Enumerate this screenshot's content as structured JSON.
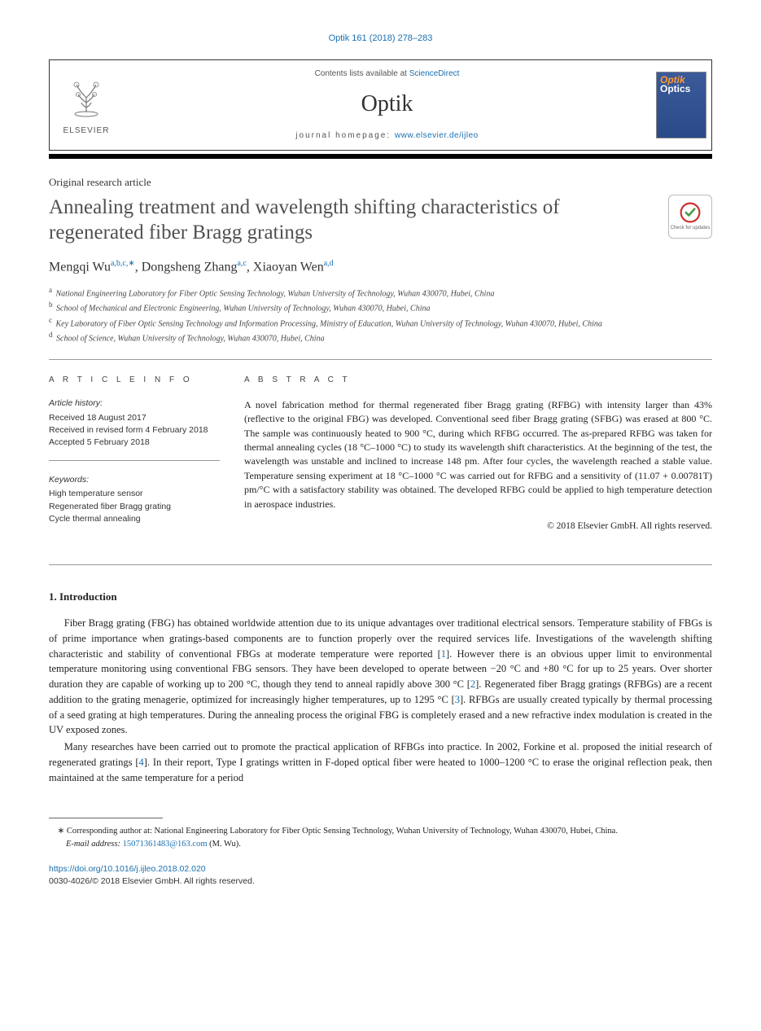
{
  "citation": "Optik 161 (2018) 278–283",
  "header": {
    "contents_prefix": "Contents lists available at ",
    "contents_link": "ScienceDirect",
    "journal": "Optik",
    "homepage_prefix": "journal homepage: ",
    "homepage_url": "www.elsevier.de/ijleo",
    "publisher": "ELSEVIER",
    "cover_title1": "Optik",
    "cover_title2": "Optics"
  },
  "article_type": "Original research article",
  "title": "Annealing treatment and wavelength shifting characteristics of regenerated fiber Bragg gratings",
  "crossmark_label": "Check for updates",
  "authors": [
    {
      "name": "Mengqi Wu",
      "affs": "a,b,c,",
      "star": "∗"
    },
    {
      "name": "Dongsheng Zhang",
      "affs": "a,c",
      "star": ""
    },
    {
      "name": "Xiaoyan Wen",
      "affs": "a,d",
      "star": ""
    }
  ],
  "affiliations": [
    {
      "key": "a",
      "text": "National Engineering Laboratory for Fiber Optic Sensing Technology, Wuhan University of Technology, Wuhan 430070, Hubei, China"
    },
    {
      "key": "b",
      "text": "School of Mechanical and Electronic Engineering, Wuhan University of Technology, Wuhan 430070, Hubei, China"
    },
    {
      "key": "c",
      "text": "Key Laboratory of Fiber Optic Sensing Technology and Information Processing, Ministry of Education, Wuhan University of Technology, Wuhan 430070, Hubei, China"
    },
    {
      "key": "d",
      "text": "School of Science, Wuhan University of Technology, Wuhan 430070, Hubei, China"
    }
  ],
  "info": {
    "label": "a r t i c l e   i n f o",
    "history_label": "Article history:",
    "history": [
      "Received 18 August 2017",
      "Received in revised form 4 February 2018",
      "Accepted 5 February 2018"
    ],
    "keywords_label": "Keywords:",
    "keywords": [
      "High temperature sensor",
      "Regenerated fiber Bragg grating",
      "Cycle thermal annealing"
    ]
  },
  "abstract": {
    "label": "a b s t r a c t",
    "text": "A novel fabrication method for thermal regenerated fiber Bragg grating (RFBG) with intensity larger than 43% (reflective to the original FBG) was developed. Conventional seed fiber Bragg grating (SFBG) was erased at 800 °C. The sample was continuously heated to 900 °C, during which RFBG occurred. The as-prepared RFBG was taken for thermal annealing cycles (18 °C–1000 °C) to study its wavelength shift characteristics. At the beginning of the test, the wavelength was unstable and inclined to increase 148 pm. After four cycles, the wavelength reached a stable value. Temperature sensing experiment at 18 °C–1000 °C was carried out for RFBG and a sensitivity of (11.07 + 0.00781T) pm/°C with a satisfactory stability was obtained. The developed RFBG could be applied to high temperature detection in aerospace industries.",
    "copyright": "© 2018 Elsevier GmbH. All rights reserved."
  },
  "body": {
    "heading": "1.  Introduction",
    "paras": [
      "Fiber Bragg grating (FBG) has obtained worldwide attention due to its unique advantages over traditional electrical sensors. Temperature stability of FBGs is of prime importance when gratings-based components are to function properly over the required services life. Investigations of the wavelength shifting characteristic and stability of conventional FBGs at moderate temperature were reported [1]. However there is an obvious upper limit to environmental temperature monitoring using conventional FBG sensors. They have been developed to operate between −20 °C and +80 °C for up to 25 years. Over shorter duration they are capable of working up to 200 °C, though they tend to anneal rapidly above 300 °C [2]. Regenerated fiber Bragg gratings (RFBGs) are a recent addition to the grating menagerie, optimized for increasingly higher temperatures, up to 1295 °C [3]. RFBGs are usually created typically by thermal processing of a seed grating at high temperatures. During the annealing process the original FBG is completely erased and a new refractive index modulation is created in the UV exposed zones.",
      "Many researches have been carried out to promote the practical application of RFBGs into practice. In 2002, Forkine et al. proposed the initial research of regenerated gratings [4]. In their report, Type I gratings written in F-doped optical fiber were heated to 1000–1200 °C to erase the original reflection peak, then maintained at the same temperature for a period"
    ]
  },
  "footnote": {
    "corr": "∗   Corresponding author at: National Engineering Laboratory for Fiber Optic Sensing Technology, Wuhan University of Technology, Wuhan 430070, Hubei, China.",
    "email_label": "E-mail address: ",
    "email": "15071361483@163.com",
    "email_suffix": " (M. Wu)."
  },
  "doi": "https://doi.org/10.1016/j.ijleo.2018.02.020",
  "rights": "0030-4026/© 2018 Elsevier GmbH. All rights reserved.",
  "colors": {
    "link": "#1a6faf",
    "text": "#222222",
    "title_gray": "#505050",
    "cover_orange": "#ff9933",
    "cover_bg_top": "#3a5a9a"
  }
}
